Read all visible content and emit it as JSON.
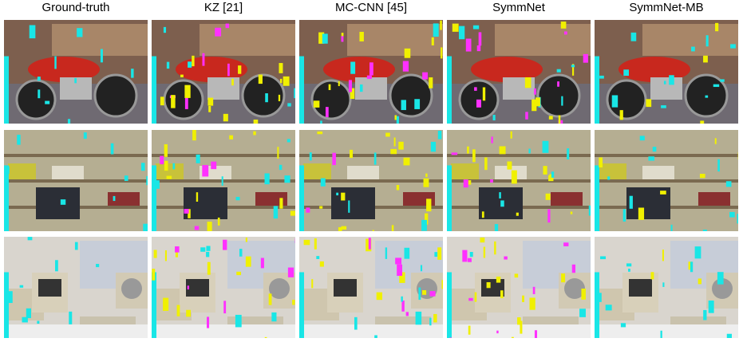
{
  "columns": [
    "Ground-truth",
    "KZ [21]",
    "MC-CNN [45]",
    "SymmNet",
    "SymmNet-MB"
  ]
}
